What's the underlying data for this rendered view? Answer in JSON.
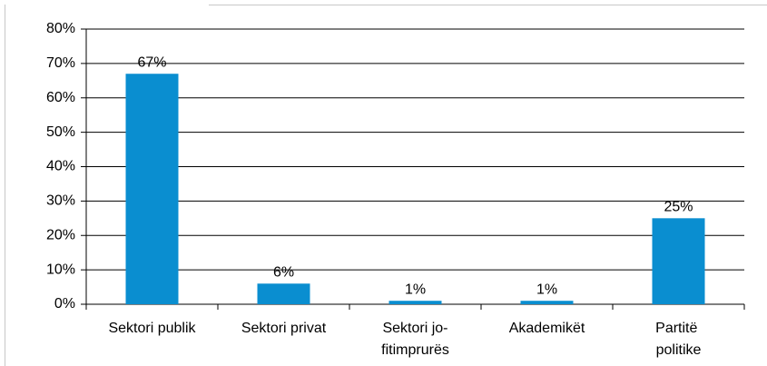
{
  "chart_data": {
    "type": "bar",
    "categories": [
      "Sektori publik",
      "Sektori privat",
      "Sektori jo-fitimprurës",
      "Akademikët",
      "Partitë politike"
    ],
    "values": [
      67,
      6,
      1,
      1,
      25
    ],
    "value_labels": [
      "67%",
      "6%",
      "1%",
      "1%",
      "25%"
    ],
    "color": "#0a8ed0",
    "ylim": [
      0,
      80
    ],
    "yticks": [
      {
        "value": 0,
        "label": "0%"
      },
      {
        "value": 10,
        "label": "10%"
      },
      {
        "value": 20,
        "label": "20%"
      },
      {
        "value": 30,
        "label": "30%"
      },
      {
        "value": 40,
        "label": "40%"
      },
      {
        "value": 50,
        "label": "50%"
      },
      {
        "value": 60,
        "label": "60%"
      },
      {
        "value": 70,
        "label": "70%"
      },
      {
        "value": 80,
        "label": "80%"
      }
    ],
    "grid": true
  }
}
